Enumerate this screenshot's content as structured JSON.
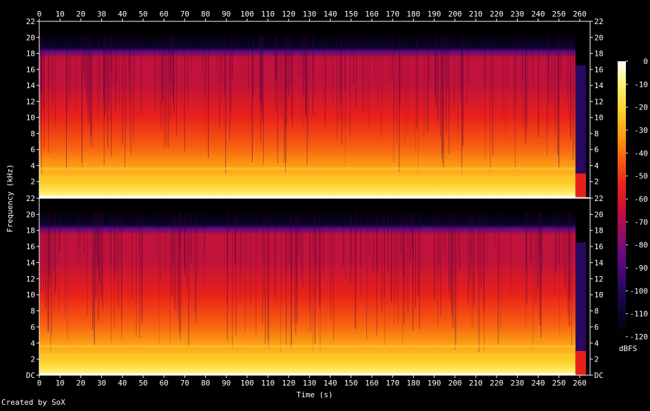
{
  "chart_data": {
    "type": "heatmap",
    "title": "",
    "xlabel": "Time (s)",
    "ylabel": "Frequency (kHz)",
    "xlim": [
      0,
      265
    ],
    "x_ticks": [
      "0",
      "10",
      "20",
      "30",
      "40",
      "50",
      "60",
      "70",
      "80",
      "90",
      "100",
      "110",
      "120",
      "130",
      "140",
      "150",
      "160",
      "170",
      "180",
      "190",
      "200",
      "210",
      "220",
      "230",
      "240",
      "250",
      "260"
    ],
    "channels": [
      {
        "name": "",
        "ylim": [
          0,
          22
        ],
        "y_ticks": [
          "22",
          "20",
          "18",
          "16",
          "14",
          "12",
          "10",
          "8",
          "6",
          "4",
          "2"
        ]
      },
      {
        "name": "",
        "ylim": [
          0,
          22
        ],
        "y_ticks": [
          "22",
          "20",
          "18",
          "16",
          "14",
          "12",
          "10",
          "8",
          "6",
          "4",
          "2",
          "DC"
        ]
      }
    ],
    "colorbar": {
      "label": "dBFS",
      "ticks": [
        "0",
        "-10",
        "-20",
        "-30",
        "-40",
        "-50",
        "-60",
        "-70",
        "-80",
        "-90",
        "-100",
        "-110",
        "-120"
      ],
      "range": [
        -120,
        0
      ]
    },
    "footer": "Created by SoX"
  },
  "colors": {
    "background": "#000000",
    "text": "#ffffff",
    "axis": "#ffffff",
    "palette": [
      "#000000",
      "#0c0430",
      "#2a0860",
      "#5c0a80",
      "#900c6c",
      "#c0123a",
      "#e8201a",
      "#f75c10",
      "#fc9a14",
      "#fdd02c",
      "#fff070",
      "#ffffff"
    ]
  }
}
